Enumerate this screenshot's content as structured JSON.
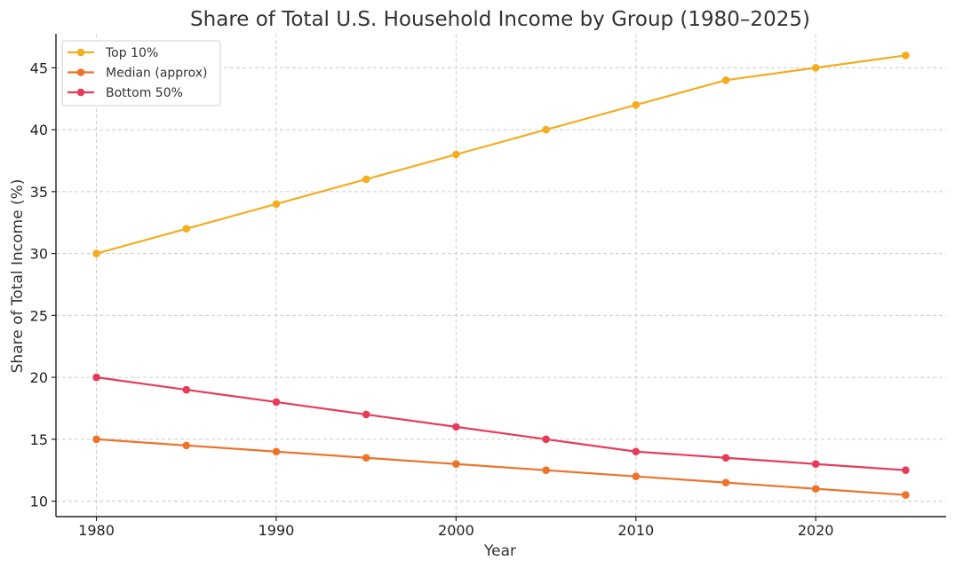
{
  "chart_data": {
    "type": "line",
    "title": "Share of Total U.S. Household Income by Group (1980–2025)",
    "xlabel": "Year",
    "ylabel": "Share of Total Income (%)",
    "x": [
      1980,
      1985,
      1990,
      1995,
      2000,
      2005,
      2010,
      2015,
      2020,
      2025
    ],
    "xticks": [
      1980,
      1990,
      2000,
      2010,
      2020
    ],
    "yticks": [
      10,
      15,
      20,
      25,
      30,
      35,
      40,
      45
    ],
    "xlim": [
      1977.75,
      2027.25
    ],
    "ylim": [
      8.75,
      47.75
    ],
    "grid": true,
    "legend_position": "top-left",
    "series": [
      {
        "name": "Top 10%",
        "color": "#f3ad1e",
        "values": [
          30,
          32,
          34,
          36,
          38,
          40,
          42,
          44,
          45,
          46
        ]
      },
      {
        "name": "Median (approx)",
        "color": "#ec7329",
        "values": [
          15,
          14.5,
          14,
          13.5,
          13,
          12.5,
          12,
          11.5,
          11,
          10.5
        ]
      },
      {
        "name": "Bottom 50%",
        "color": "#e63c5a",
        "values": [
          20,
          19,
          18,
          17,
          16,
          15,
          14,
          13.5,
          13,
          12.5
        ]
      }
    ]
  }
}
